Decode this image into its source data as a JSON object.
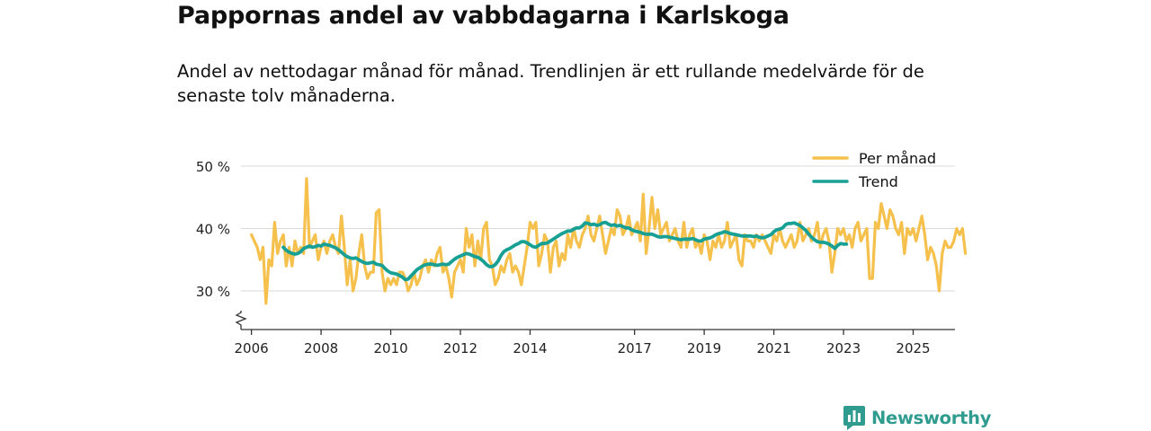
{
  "title": "Pappornas andel av vabbdagarna i Karlskoga",
  "subtitle": "Andel av nettodagar månad för månad. Trendlinjen är ett rullande medelvärde för de senaste tolv månaderna.",
  "brand": {
    "name": "Newsworthy",
    "logo_icon": "bar-chart-icon"
  },
  "colors": {
    "monthly": "#f5c04b",
    "trend": "#17a093",
    "grid": "#d9d9d9",
    "axis": "#333333",
    "brand": "#2f9c8f"
  },
  "chart_data": {
    "type": "line",
    "title": "Pappornas andel av vabbdagarna i Karlskoga",
    "xlabel": "",
    "ylabel": "",
    "xlim": [
      2005.7,
      2026.2
    ],
    "ylim": [
      24,
      50
    ],
    "y_axis_break": true,
    "grid": "horizontal",
    "legend_position": "top-right",
    "x_ticks": [
      2006,
      2008,
      2010,
      2012,
      2014,
      2017,
      2019,
      2021,
      2023,
      2025
    ],
    "x_tick_labels": [
      "2006",
      "2008",
      "2010",
      "2012",
      "2014",
      "2017",
      "2019",
      "2021",
      "2023",
      "2025"
    ],
    "y_ticks": [
      30,
      40,
      50
    ],
    "y_tick_labels": [
      "30 %",
      "40 %",
      "50 %"
    ],
    "series": [
      {
        "name": "Per månad",
        "x_start": 2006.0,
        "x_step": 0.08333,
        "values": [
          39,
          38,
          37,
          35,
          37,
          28,
          35,
          34,
          41,
          36,
          38,
          39,
          34,
          37,
          34,
          38,
          36,
          37,
          36,
          48,
          37,
          38,
          39,
          35,
          37,
          38,
          36,
          38,
          39,
          37,
          36,
          42,
          37,
          31,
          35,
          30,
          32,
          36,
          39,
          34,
          32,
          33,
          33,
          42.5,
          43,
          33,
          30,
          32,
          31,
          32,
          31,
          33,
          33,
          32,
          30,
          31,
          33,
          31,
          32,
          34,
          35,
          33,
          35,
          34,
          36,
          37,
          33,
          34,
          32,
          29,
          33,
          34,
          35,
          33,
          40,
          37,
          39,
          34,
          38,
          35,
          40,
          41,
          35,
          34,
          31,
          32,
          34,
          33,
          35,
          36,
          33,
          34,
          33,
          31,
          34,
          37,
          41,
          40,
          41,
          34,
          36,
          39,
          38,
          33,
          37,
          38,
          34,
          36,
          35,
          39,
          37,
          40,
          38,
          37,
          39,
          40,
          42,
          39,
          38,
          40,
          42,
          39,
          36,
          38,
          40,
          39,
          43,
          42,
          39,
          40,
          42,
          39,
          40,
          41,
          38,
          45.5,
          36,
          40,
          45,
          40,
          43,
          39,
          40,
          41,
          38,
          39,
          40,
          38,
          37,
          41,
          37,
          39,
          40,
          37,
          38,
          36,
          39,
          38,
          35,
          38,
          37,
          39,
          37,
          38,
          41,
          37,
          38,
          39,
          35,
          34,
          39,
          38,
          38,
          37,
          39,
          38,
          39,
          38,
          37,
          36,
          39,
          38,
          40,
          38,
          37,
          38,
          39,
          37,
          38,
          41,
          38,
          39,
          40,
          38,
          39,
          41,
          37,
          39,
          40,
          38,
          33,
          36,
          40,
          39,
          40,
          38,
          39,
          37,
          40,
          41,
          38,
          39,
          40,
          32,
          32,
          41,
          40,
          44,
          42,
          40,
          43,
          42,
          40,
          39,
          41,
          36,
          40,
          39,
          40,
          38,
          40,
          42,
          39,
          35,
          37,
          36,
          34,
          30,
          36,
          38,
          37,
          37,
          38,
          40,
          39,
          40,
          36
        ]
      },
      {
        "name": "Trend",
        "x_start": 2006.9167,
        "x_step": 0.08333,
        "values": [
          37,
          36.5,
          36.2,
          36,
          35.9,
          36,
          36.3,
          36.8,
          37,
          37.2,
          37,
          37.1,
          37.3,
          37.2,
          37.5,
          37.4,
          37.3,
          37.1,
          36.9,
          36.6,
          36.2,
          35.8,
          35.5,
          35.3,
          35.2,
          35.3,
          35,
          34.7,
          34.5,
          34.4,
          34.5,
          34.6,
          34.3,
          34.2,
          34.1,
          33.6,
          33.2,
          32.9,
          32.8,
          32.7,
          32.5,
          32.2,
          31.8,
          31.9,
          32.4,
          32.9,
          33.4,
          33.7,
          34,
          34.2,
          34.3,
          34.3,
          34.2,
          34.1,
          34.2,
          34.3,
          34.2,
          34.3,
          34.7,
          35.1,
          35.4,
          35.6,
          35.8,
          36,
          35.9,
          35.7,
          35.5,
          35.4,
          35.1,
          34.7,
          34.2,
          33.9,
          33.9,
          34.2,
          34.8,
          35.7,
          36.3,
          36.6,
          36.8,
          37.1,
          37.4,
          37.6,
          37.9,
          37.9,
          37.7,
          37.4,
          37.1,
          37,
          37.3,
          37.6,
          37.6,
          37.7,
          38,
          38.3,
          38.6,
          38.9,
          39.2,
          39.4,
          39.6,
          39.6,
          39.9,
          40.1,
          40.1,
          40.4,
          40.9,
          40.8,
          40.6,
          40.7,
          40.5,
          40.6,
          40.9,
          41,
          40.7,
          40.5,
          40.6,
          40.4,
          40.5,
          40.3,
          40.1,
          40.1,
          39.8,
          39.6,
          39.5,
          39.4,
          39.2,
          39.1,
          39.1,
          39.1,
          38.9,
          38.7,
          38.6,
          38.7,
          38.7,
          38.6,
          38.5,
          38.4,
          38.3,
          38.2,
          38.3,
          38.3,
          38.3,
          38.4,
          38.2,
          38,
          38,
          38.3,
          38.4,
          38.5,
          38.7,
          39,
          39.2,
          39.3,
          39.5,
          39.4,
          39.2,
          39.1,
          39,
          38.9,
          38.8,
          38.8,
          38.8,
          38.8,
          38.7,
          38.8,
          38.6,
          38.5,
          38.6,
          38.8,
          39,
          39.5,
          39.8,
          39.9,
          40.1,
          40.6,
          40.8,
          40.8,
          40.9,
          40.7,
          40.5,
          40.1,
          39.7,
          39.1,
          38.6,
          38.2,
          37.9,
          37.8,
          37.8,
          37.7,
          37.5,
          37.2,
          36.8,
          37.3,
          37.6,
          37.5,
          37.5
        ]
      }
    ]
  }
}
